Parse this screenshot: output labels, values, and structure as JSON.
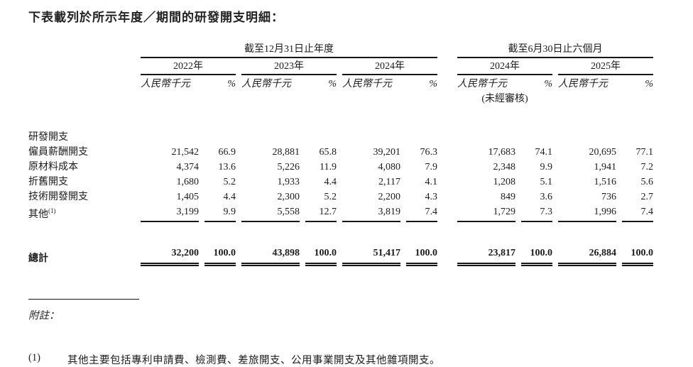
{
  "page": {
    "title": "下表載列於所示年度／期間的研發開支明細："
  },
  "colors": {
    "text": "#1c1c1c",
    "rule": "#151515",
    "background": "#ffffff"
  },
  "table": {
    "groups": [
      {
        "label": "截至12月31日止年度"
      },
      {
        "label": "截至6月30日止六個月"
      }
    ],
    "years": [
      "2022年",
      "2023年",
      "2024年",
      "2024年",
      "2025年"
    ],
    "unit_label": "人民幣千元",
    "percent_label": "%",
    "unaudited_label": "(未經審核)",
    "section_header": "研發開支",
    "rows": [
      {
        "label": "僱員薪酬開支",
        "sup": "",
        "values": [
          "21,542",
          "66.9",
          "28,881",
          "65.8",
          "39,201",
          "76.3",
          "17,683",
          "74.1",
          "20,695",
          "77.1"
        ]
      },
      {
        "label": "原材料成本",
        "sup": "",
        "values": [
          "4,374",
          "13.6",
          "5,226",
          "11.9",
          "4,080",
          "7.9",
          "2,348",
          "9.9",
          "1,941",
          "7.2"
        ]
      },
      {
        "label": "折舊開支",
        "sup": "",
        "values": [
          "1,680",
          "5.2",
          "1,933",
          "4.4",
          "2,117",
          "4.1",
          "1,208",
          "5.1",
          "1,516",
          "5.6"
        ]
      },
      {
        "label": "技術開發開支",
        "sup": "",
        "values": [
          "1,405",
          "4.4",
          "2,300",
          "5.2",
          "2,200",
          "4.3",
          "849",
          "3.6",
          "736",
          "2.7"
        ]
      },
      {
        "label": "其他",
        "sup": "(1)",
        "values": [
          "3,199",
          "9.9",
          "5,558",
          "12.7",
          "3,819",
          "7.4",
          "1,729",
          "7.3",
          "1,996",
          "7.4"
        ]
      }
    ],
    "total": {
      "label": "總計",
      "values": [
        "32,200",
        "100.0",
        "43,898",
        "100.0",
        "51,417",
        "100.0",
        "23,817",
        "100.0",
        "26,884",
        "100.0"
      ]
    }
  },
  "notes": {
    "heading": "附註：",
    "items": [
      {
        "marker": "(1)",
        "text": "其他主要包括專利申請費、檢測費、差旅開支、公用事業開支及其他雜項開支。"
      }
    ]
  }
}
